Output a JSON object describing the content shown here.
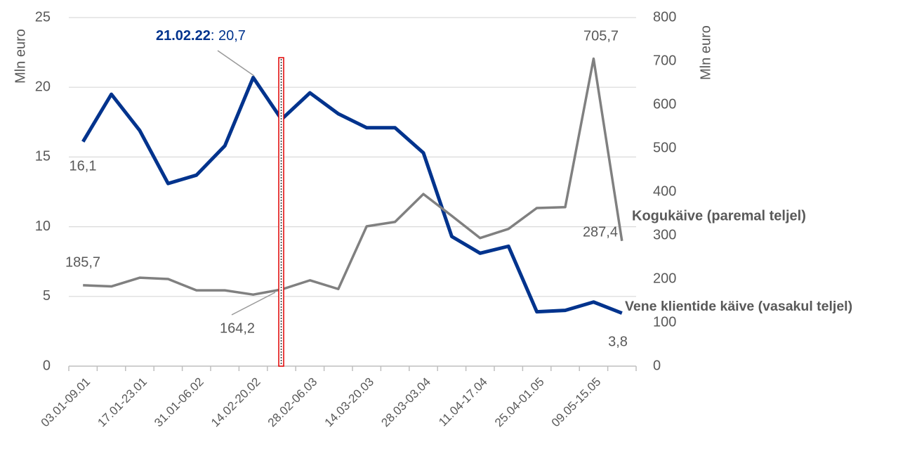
{
  "chart_data": {
    "type": "line",
    "categories": [
      "03.01-09.01",
      null,
      "17.01-23.01",
      null,
      "31.01-06.02",
      null,
      "14.02-20.02",
      null,
      "28.02-06.03",
      null,
      "14.03-20.03",
      null,
      "28.03-03.04",
      null,
      "11.04-17.04",
      null,
      "25.04-01.05",
      null,
      "09.05-15.05",
      null
    ],
    "series": [
      {
        "name": "Vene klientide käive (vasakul teljel)",
        "color": "#00338d",
        "axis": "y",
        "values": [
          16.1,
          19.5,
          16.9,
          13.1,
          13.7,
          15.8,
          20.7,
          17.7,
          19.6,
          18.1,
          17.1,
          17.1,
          15.3,
          9.3,
          8.1,
          8.6,
          3.9,
          4.0,
          4.6,
          3.8
        ],
        "value_labels": [
          "16,1",
          null,
          null,
          null,
          null,
          null,
          ": 20,7",
          null,
          null,
          null,
          null,
          null,
          null,
          null,
          null,
          null,
          null,
          null,
          null,
          "3,8"
        ]
      },
      {
        "name": "Kogukäive (paremal teljel)",
        "color": "#808080",
        "axis": "y2",
        "values": [
          185.7,
          183,
          203,
          200,
          174,
          174,
          164.2,
          176,
          197,
          177,
          321,
          331,
          395,
          345,
          294,
          315,
          363,
          365,
          705.7,
          287.4
        ],
        "value_labels": [
          "185,7",
          null,
          null,
          null,
          null,
          null,
          "164,2",
          null,
          null,
          null,
          null,
          null,
          null,
          null,
          null,
          null,
          null,
          null,
          "705,7",
          "287,4"
        ]
      }
    ],
    "annotation": "21.02.22",
    "ylabel": "Mln euro",
    "y2label": "Mln euro",
    "ylim": [
      0,
      25
    ],
    "yticks": [
      0,
      5,
      10,
      15,
      20,
      25
    ],
    "y2lim": [
      0,
      800
    ],
    "y2ticks": [
      0,
      100,
      200,
      300,
      400,
      500,
      600,
      700,
      800
    ],
    "grid": true
  }
}
